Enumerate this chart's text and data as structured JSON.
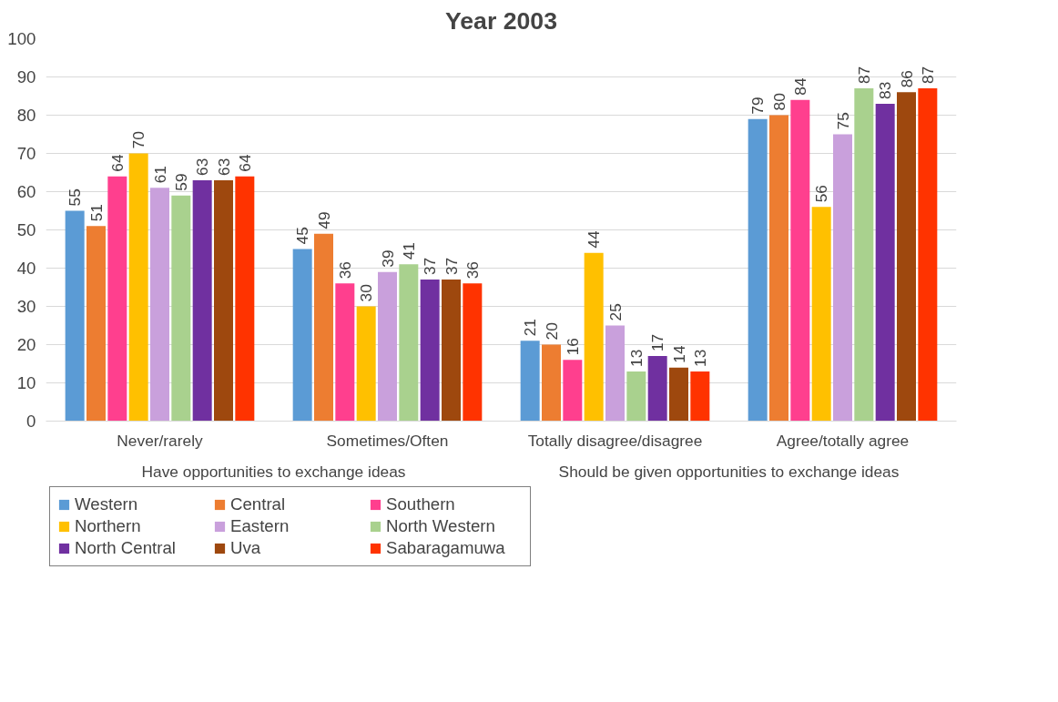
{
  "chart_data": {
    "type": "bar",
    "title": "Year 2003",
    "categories": [
      "Never/rarely",
      "Sometimes/Often",
      "Totally disagree/disagree",
      "Agree/totally agree"
    ],
    "annotations": [
      "Have opportunities to exchange ideas",
      "Should be given opportunities to exchange ideas"
    ],
    "ylim": [
      0,
      100
    ],
    "yticks": [
      0,
      10,
      20,
      30,
      40,
      50,
      60,
      70,
      80,
      90,
      100
    ],
    "grid": "y",
    "legend": "bottom",
    "data_labels": true,
    "series": [
      {
        "name": "Western",
        "color": "#5b9bd5",
        "values": [
          55,
          45,
          21,
          79
        ]
      },
      {
        "name": "Central",
        "color": "#ed7d31",
        "values": [
          51,
          49,
          20,
          80
        ]
      },
      {
        "name": "Southern",
        "color": "#ff3f8e",
        "values": [
          64,
          36,
          16,
          84
        ]
      },
      {
        "name": "Northern",
        "color": "#ffc000",
        "values": [
          70,
          30,
          44,
          56
        ]
      },
      {
        "name": "Eastern",
        "color": "#c9a0dc",
        "values": [
          61,
          39,
          25,
          75
        ]
      },
      {
        "name": "North Western",
        "color": "#a9d18e",
        "values": [
          59,
          41,
          13,
          87
        ]
      },
      {
        "name": "North Central",
        "color": "#7030a0",
        "values": [
          63,
          37,
          17,
          83
        ]
      },
      {
        "name": "Uva",
        "color": "#9e480e",
        "values": [
          63,
          37,
          14,
          86
        ]
      },
      {
        "name": "Sabaragamuwa",
        "color": "#ff3300",
        "values": [
          64,
          36,
          13,
          87
        ]
      }
    ]
  }
}
